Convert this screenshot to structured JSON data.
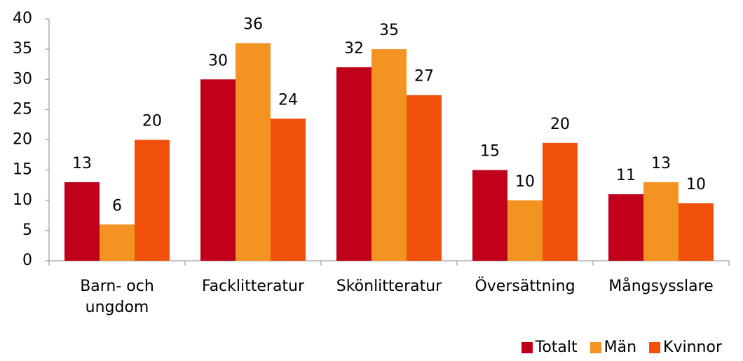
{
  "chart_data": {
    "type": "bar",
    "categories": [
      "Barn- och ungdom",
      "Facklitteratur",
      "Skönlitteratur",
      "Översättning",
      "Mångsysslare"
    ],
    "series": [
      {
        "name": "Totalt",
        "color": "#c0001b",
        "values": [
          13,
          30,
          32,
          15,
          11
        ]
      },
      {
        "name": "Män",
        "color": "#f39322",
        "values": [
          6,
          36,
          35,
          10,
          13
        ]
      },
      {
        "name": "Kvinnor",
        "color": "#f0500a",
        "values": [
          20,
          23.5,
          27.4,
          19.5,
          9.5
        ],
        "value_labels": [
          "20",
          "24",
          "27",
          "20",
          "10"
        ]
      }
    ],
    "ylim": [
      0,
      40
    ],
    "yticks": [
      0,
      5,
      10,
      15,
      20,
      25,
      30,
      35,
      40
    ],
    "grid": false,
    "legend": "bottom-right"
  }
}
